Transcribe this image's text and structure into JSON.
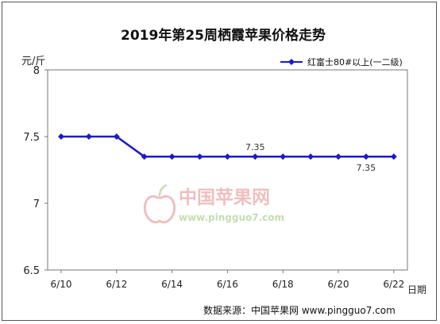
{
  "chart_data": {
    "type": "line",
    "title": "2019年第25周栖霞苹果价格走势",
    "ylabel": "元/斤",
    "xlabel": "日期",
    "ylim": [
      6.5,
      8
    ],
    "yticks": [
      "6.5",
      "7",
      "7.5",
      "8"
    ],
    "xticks": [
      "6/10",
      "6/12",
      "6/14",
      "6/16",
      "6/18",
      "6/20",
      "6/22"
    ],
    "legend_position": "top-right",
    "grid": false,
    "series": [
      {
        "name": "红富士80#以上(一二级)",
        "color": "#1a1acc",
        "x": [
          "6/10",
          "6/11",
          "6/12",
          "6/13",
          "6/14",
          "6/15",
          "6/16",
          "6/17",
          "6/18",
          "6/19",
          "6/20",
          "6/21",
          "6/22"
        ],
        "values": [
          7.5,
          7.5,
          7.5,
          7.35,
          7.35,
          7.35,
          7.35,
          7.35,
          7.35,
          7.35,
          7.35,
          7.35,
          7.35
        ]
      }
    ],
    "annotations": [
      {
        "text": "7.35",
        "x": "6/17",
        "y": 7.35,
        "position": "above"
      },
      {
        "text": "7.35",
        "x": "6/21",
        "y": 7.35,
        "position": "below"
      }
    ]
  },
  "watermark": {
    "text_cn": "中国苹果网",
    "text_url": "www.pingguo7.com"
  },
  "source_text": "数据来源：中国苹果网 www.pingguo7.com"
}
